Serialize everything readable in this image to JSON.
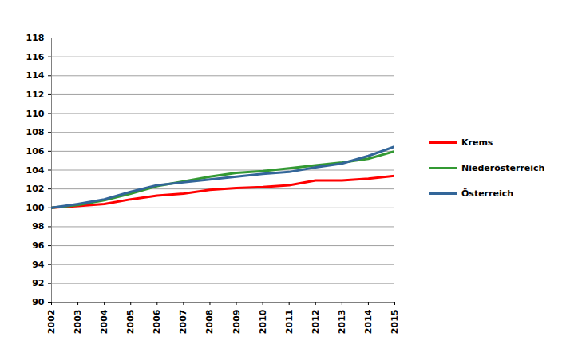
{
  "chart_data": {
    "type": "line",
    "x": [
      2002,
      2003,
      2004,
      2005,
      2006,
      2007,
      2008,
      2009,
      2010,
      2011,
      2012,
      2013,
      2014,
      2015
    ],
    "series": [
      {
        "name": "Krems",
        "color": "#ff0000",
        "values": [
          100,
          100.2,
          100.4,
          100.9,
          101.3,
          101.5,
          101.9,
          102.1,
          102.2,
          102.4,
          102.9,
          102.9,
          103.1,
          103.4
        ]
      },
      {
        "name": "Niederösterreich",
        "color": "#339933",
        "values": [
          100,
          100.3,
          100.8,
          101.5,
          102.3,
          102.8,
          103.3,
          103.7,
          103.9,
          104.2,
          104.5,
          104.8,
          105.2,
          106.0
        ]
      },
      {
        "name": "Österreich",
        "color": "#336699",
        "values": [
          100,
          100.4,
          100.9,
          101.7,
          102.4,
          102.7,
          103.0,
          103.3,
          103.6,
          103.8,
          104.3,
          104.7,
          105.5,
          106.5
        ]
      }
    ],
    "xlim": [
      2002,
      2015
    ],
    "xticks": [
      2002,
      2003,
      2004,
      2005,
      2006,
      2007,
      2008,
      2009,
      2010,
      2011,
      2012,
      2013,
      2014,
      2015
    ],
    "ylim": [
      90,
      118
    ],
    "yticks": [
      90,
      92,
      94,
      96,
      98,
      100,
      102,
      104,
      106,
      108,
      110,
      112,
      114,
      116,
      118
    ],
    "grid": true,
    "legend": "right"
  }
}
